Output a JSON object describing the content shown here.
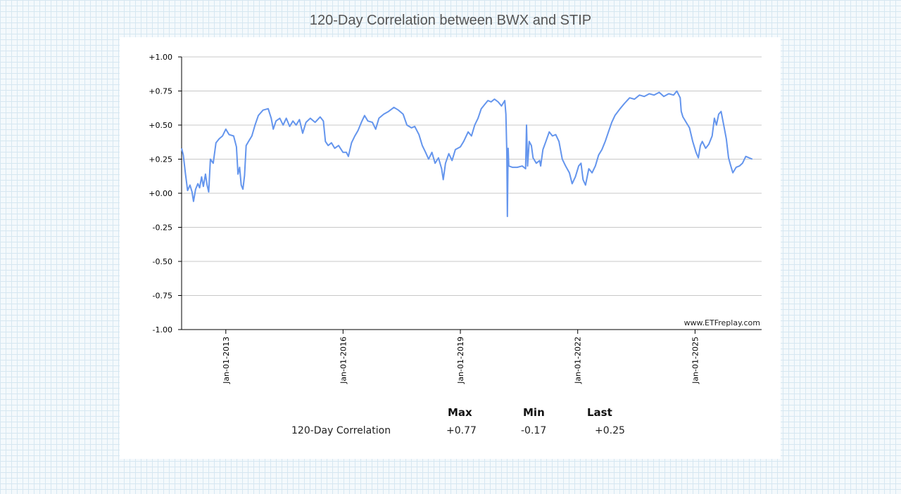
{
  "page": {
    "title": "120-Day Correlation between BWX and STIP"
  },
  "chart_data": {
    "type": "line",
    "title": "120-Day Correlation between BWX and STIP",
    "xlabel": "",
    "ylabel": "",
    "x_range": [
      "2011-11-15",
      "2026-09-15"
    ],
    "ylim": [
      -1.0,
      1.0
    ],
    "yticks": [
      "+1.00",
      "+0.75",
      "+0.50",
      "+0.25",
      "+0.00",
      "-0.25",
      "-0.50",
      "-0.75",
      "-1.00"
    ],
    "ytick_values": [
      1.0,
      0.75,
      0.5,
      0.25,
      0.0,
      -0.25,
      -0.5,
      -0.75,
      -1.0
    ],
    "xticks": [
      "Jan-01-2013",
      "Jan-01-2016",
      "Jan-01-2019",
      "Jan-01-2022",
      "Jan-01-2025"
    ],
    "xtick_dates": [
      "2013-01-01",
      "2016-01-01",
      "2019-01-01",
      "2022-01-01",
      "2025-01-01"
    ],
    "grid": true,
    "watermark": "www.ETFreplay.com",
    "line_color": "#6495ed",
    "series": [
      {
        "name": "120-Day Correlation",
        "points": [
          [
            "2011-11-15",
            0.33
          ],
          [
            "2011-12-01",
            0.28
          ],
          [
            "2011-12-20",
            0.15
          ],
          [
            "2012-01-10",
            0.02
          ],
          [
            "2012-02-01",
            0.06
          ],
          [
            "2012-02-20",
            0.01
          ],
          [
            "2012-03-05",
            -0.06
          ],
          [
            "2012-03-25",
            0.03
          ],
          [
            "2012-04-15",
            0.07
          ],
          [
            "2012-05-01",
            0.04
          ],
          [
            "2012-05-20",
            0.12
          ],
          [
            "2012-06-05",
            0.05
          ],
          [
            "2012-06-25",
            0.14
          ],
          [
            "2012-07-10",
            0.06
          ],
          [
            "2012-07-25",
            0.01
          ],
          [
            "2012-08-10",
            0.25
          ],
          [
            "2012-09-05",
            0.22
          ],
          [
            "2012-10-01",
            0.37
          ],
          [
            "2012-11-01",
            0.4
          ],
          [
            "2012-12-01",
            0.42
          ],
          [
            "2013-01-01",
            0.47
          ],
          [
            "2013-02-01",
            0.43
          ],
          [
            "2013-03-15",
            0.42
          ],
          [
            "2013-04-10",
            0.34
          ],
          [
            "2013-04-25",
            0.14
          ],
          [
            "2013-05-10",
            0.19
          ],
          [
            "2013-05-25",
            0.06
          ],
          [
            "2013-06-10",
            0.03
          ],
          [
            "2013-06-25",
            0.13
          ],
          [
            "2013-07-10",
            0.35
          ],
          [
            "2013-08-01",
            0.38
          ],
          [
            "2013-09-01",
            0.42
          ],
          [
            "2013-10-01",
            0.5
          ],
          [
            "2013-11-01",
            0.57
          ],
          [
            "2013-12-15",
            0.61
          ],
          [
            "2014-02-01",
            0.62
          ],
          [
            "2014-03-01",
            0.55
          ],
          [
            "2014-03-20",
            0.47
          ],
          [
            "2014-04-15",
            0.53
          ],
          [
            "2014-05-20",
            0.55
          ],
          [
            "2014-06-20",
            0.5
          ],
          [
            "2014-07-20",
            0.55
          ],
          [
            "2014-08-20",
            0.49
          ],
          [
            "2014-09-20",
            0.53
          ],
          [
            "2014-10-20",
            0.5
          ],
          [
            "2014-11-20",
            0.54
          ],
          [
            "2014-12-20",
            0.44
          ],
          [
            "2015-01-20",
            0.52
          ],
          [
            "2015-03-01",
            0.55
          ],
          [
            "2015-04-15",
            0.52
          ],
          [
            "2015-06-01",
            0.56
          ],
          [
            "2015-07-01",
            0.53
          ],
          [
            "2015-07-20",
            0.38
          ],
          [
            "2015-08-15",
            0.35
          ],
          [
            "2015-09-15",
            0.37
          ],
          [
            "2015-10-15",
            0.33
          ],
          [
            "2015-11-20",
            0.35
          ],
          [
            "2016-01-01",
            0.3
          ],
          [
            "2016-02-01",
            0.3
          ],
          [
            "2016-02-20",
            0.27
          ],
          [
            "2016-03-20",
            0.37
          ],
          [
            "2016-04-20",
            0.42
          ],
          [
            "2016-05-20",
            0.46
          ],
          [
            "2016-06-20",
            0.52
          ],
          [
            "2016-07-20",
            0.57
          ],
          [
            "2016-08-20",
            0.53
          ],
          [
            "2016-10-01",
            0.52
          ],
          [
            "2016-11-01",
            0.47
          ],
          [
            "2016-12-01",
            0.55
          ],
          [
            "2017-01-15",
            0.58
          ],
          [
            "2017-03-01",
            0.6
          ],
          [
            "2017-04-20",
            0.63
          ],
          [
            "2017-06-01",
            0.61
          ],
          [
            "2017-07-15",
            0.58
          ],
          [
            "2017-08-20",
            0.5
          ],
          [
            "2017-10-01",
            0.48
          ],
          [
            "2017-11-01",
            0.49
          ],
          [
            "2017-12-10",
            0.43
          ],
          [
            "2018-01-10",
            0.35
          ],
          [
            "2018-02-10",
            0.3
          ],
          [
            "2018-03-10",
            0.25
          ],
          [
            "2018-04-10",
            0.3
          ],
          [
            "2018-05-10",
            0.22
          ],
          [
            "2018-06-10",
            0.26
          ],
          [
            "2018-07-10",
            0.18
          ],
          [
            "2018-07-25",
            0.1
          ],
          [
            "2018-08-15",
            0.22
          ],
          [
            "2018-09-15",
            0.29
          ],
          [
            "2018-10-15",
            0.24
          ],
          [
            "2018-11-15",
            0.32
          ],
          [
            "2019-01-01",
            0.34
          ],
          [
            "2019-02-01",
            0.38
          ],
          [
            "2019-03-15",
            0.45
          ],
          [
            "2019-04-15",
            0.42
          ],
          [
            "2019-05-15",
            0.5
          ],
          [
            "2019-06-15",
            0.55
          ],
          [
            "2019-07-15",
            0.62
          ],
          [
            "2019-08-15",
            0.65
          ],
          [
            "2019-09-15",
            0.68
          ],
          [
            "2019-10-15",
            0.67
          ],
          [
            "2019-11-15",
            0.69
          ],
          [
            "2019-12-20",
            0.67
          ],
          [
            "2020-01-20",
            0.64
          ],
          [
            "2020-02-20",
            0.68
          ],
          [
            "2020-03-01",
            0.58
          ],
          [
            "2020-03-10",
            0.3
          ],
          [
            "2020-03-15",
            -0.17
          ],
          [
            "2020-03-22",
            0.33
          ],
          [
            "2020-03-28",
            0.2
          ],
          [
            "2020-05-01",
            0.19
          ],
          [
            "2020-06-15",
            0.19
          ],
          [
            "2020-08-01",
            0.2
          ],
          [
            "2020-09-01",
            0.18
          ],
          [
            "2020-09-10",
            0.5
          ],
          [
            "2020-09-20",
            0.2
          ],
          [
            "2020-10-05",
            0.38
          ],
          [
            "2020-10-25",
            0.35
          ],
          [
            "2020-11-10",
            0.26
          ],
          [
            "2020-12-10",
            0.22
          ],
          [
            "2021-01-10",
            0.24
          ],
          [
            "2021-01-20",
            0.2
          ],
          [
            "2021-02-10",
            0.32
          ],
          [
            "2021-03-10",
            0.38
          ],
          [
            "2021-04-10",
            0.45
          ],
          [
            "2021-05-10",
            0.42
          ],
          [
            "2021-06-10",
            0.43
          ],
          [
            "2021-07-10",
            0.38
          ],
          [
            "2021-08-10",
            0.25
          ],
          [
            "2021-09-10",
            0.2
          ],
          [
            "2021-10-15",
            0.15
          ],
          [
            "2021-11-10",
            0.07
          ],
          [
            "2021-12-10",
            0.12
          ],
          [
            "2022-01-10",
            0.2
          ],
          [
            "2022-02-01",
            0.22
          ],
          [
            "2022-02-20",
            0.1
          ],
          [
            "2022-03-15",
            0.06
          ],
          [
            "2022-04-15",
            0.18
          ],
          [
            "2022-05-15",
            0.15
          ],
          [
            "2022-06-15",
            0.2
          ],
          [
            "2022-07-15",
            0.28
          ],
          [
            "2022-08-15",
            0.32
          ],
          [
            "2022-09-15",
            0.38
          ],
          [
            "2022-10-15",
            0.45
          ],
          [
            "2022-11-15",
            0.52
          ],
          [
            "2022-12-15",
            0.57
          ],
          [
            "2023-02-01",
            0.62
          ],
          [
            "2023-03-15",
            0.66
          ],
          [
            "2023-05-01",
            0.7
          ],
          [
            "2023-06-15",
            0.69
          ],
          [
            "2023-08-01",
            0.72
          ],
          [
            "2023-09-15",
            0.71
          ],
          [
            "2023-11-01",
            0.73
          ],
          [
            "2023-12-15",
            0.72
          ],
          [
            "2024-02-01",
            0.74
          ],
          [
            "2024-03-15",
            0.71
          ],
          [
            "2024-05-01",
            0.73
          ],
          [
            "2024-06-15",
            0.72
          ],
          [
            "2024-07-15",
            0.75
          ],
          [
            "2024-08-15",
            0.7
          ],
          [
            "2024-08-25",
            0.6
          ],
          [
            "2024-09-10",
            0.56
          ],
          [
            "2024-10-10",
            0.52
          ],
          [
            "2024-11-10",
            0.48
          ],
          [
            "2024-12-10",
            0.38
          ],
          [
            "2025-01-10",
            0.3
          ],
          [
            "2025-02-01",
            0.26
          ],
          [
            "2025-02-20",
            0.35
          ],
          [
            "2025-03-10",
            0.38
          ],
          [
            "2025-04-10",
            0.33
          ],
          [
            "2025-05-10",
            0.36
          ],
          [
            "2025-06-10",
            0.42
          ],
          [
            "2025-07-01",
            0.55
          ],
          [
            "2025-07-20",
            0.5
          ],
          [
            "2025-08-10",
            0.58
          ],
          [
            "2025-09-01",
            0.6
          ],
          [
            "2025-10-01",
            0.48
          ],
          [
            "2025-10-20",
            0.4
          ],
          [
            "2025-11-10",
            0.26
          ],
          [
            "2025-12-01",
            0.2
          ],
          [
            "2025-12-20",
            0.15
          ],
          [
            "2026-01-20",
            0.19
          ],
          [
            "2026-02-20",
            0.2
          ],
          [
            "2026-03-20",
            0.22
          ],
          [
            "2026-04-20",
            0.27
          ],
          [
            "2026-05-20",
            0.26
          ],
          [
            "2026-06-20",
            0.25
          ]
        ]
      }
    ]
  },
  "stats": {
    "columns": [
      "Max",
      "Min",
      "Last"
    ],
    "row_label": "120-Day Correlation",
    "values": [
      "+0.77",
      "-0.17",
      "+0.25"
    ]
  }
}
